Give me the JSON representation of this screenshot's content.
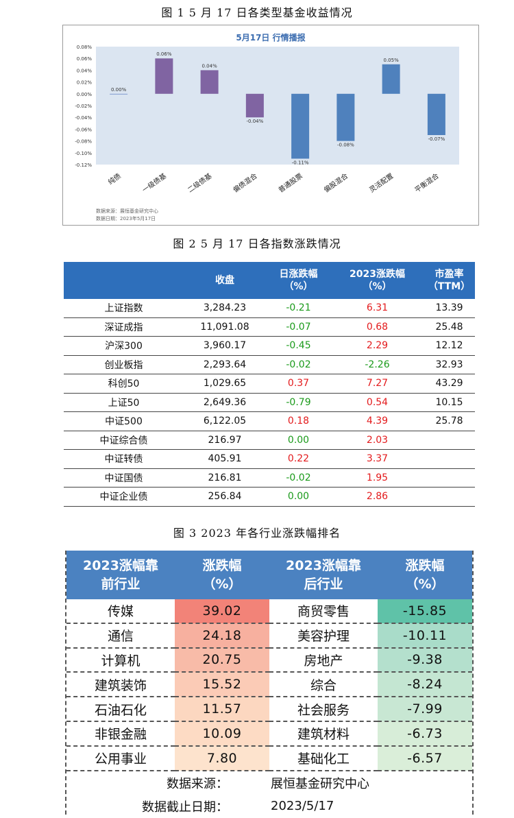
{
  "fig1": {
    "caption": "图 1   5 月 17 日各类型基金收益情况",
    "chart_title": "5月17日  行情播报",
    "source_line1": "数据来源：展恒基金研究中心",
    "source_line2": "数据日期：2023年5月17日",
    "chart_data": {
      "type": "bar",
      "categories": [
        "纯债",
        "一级债基",
        "二级债基",
        "偏债混合",
        "普通股票",
        "偏股混合",
        "灵活配置",
        "平衡混合"
      ],
      "values": [
        0.0,
        0.06,
        0.04,
        -0.04,
        -0.11,
        -0.08,
        0.05,
        -0.07
      ],
      "value_labels": [
        "0.00%",
        "0.06%",
        "0.04%",
        "-0.04%",
        "-0.11%",
        "-0.08%",
        "0.05%",
        "-0.07%"
      ],
      "colors": [
        "#7f9ad0",
        "#8064a2",
        "#8064a2",
        "#8064a2",
        "#4f81bd",
        "#4f81bd",
        "#4f81bd",
        "#4f81bd"
      ],
      "ylim": [
        -0.12,
        0.08
      ],
      "yticks": [
        0.08,
        0.06,
        0.04,
        0.02,
        0.0,
        -0.02,
        -0.04,
        -0.06,
        -0.08,
        -0.1,
        -0.12
      ],
      "ytick_labels": [
        "0.08%",
        "0.06%",
        "0.04%",
        "0.02%",
        "0.00%",
        "-0.02%",
        "-0.04%",
        "-0.06%",
        "-0.08%",
        "-0.10%",
        "-0.12%"
      ],
      "plot_bg": "#dbe5f1",
      "xlabel": "",
      "ylabel": ""
    }
  },
  "fig2": {
    "caption": "图 2   5 月 17 日各指数涨跌情况",
    "headers": [
      "",
      "收盘",
      "日涨跌幅\n（%）",
      "2023涨跌幅\n（%）",
      "市盈率\n（TTM）"
    ],
    "header_color": "#2e6fbb",
    "rows": [
      {
        "name": "上证指数",
        "close": "3,284.23",
        "day": "-0.21",
        "ytd": "6.31",
        "pe": "13.39"
      },
      {
        "name": "深证成指",
        "close": "11,091.08",
        "day": "-0.07",
        "ytd": "0.68",
        "pe": "25.48"
      },
      {
        "name": "沪深300",
        "close": "3,960.17",
        "day": "-0.45",
        "ytd": "2.29",
        "pe": "12.12"
      },
      {
        "name": "创业板指",
        "close": "2,293.64",
        "day": "-0.02",
        "ytd": "-2.26",
        "pe": "32.93"
      },
      {
        "name": "科创50",
        "close": "1,029.65",
        "day": "0.37",
        "ytd": "7.27",
        "pe": "43.29"
      },
      {
        "name": "上证50",
        "close": "2,649.36",
        "day": "-0.79",
        "ytd": "0.54",
        "pe": "10.15"
      },
      {
        "name": "中证500",
        "close": "6,122.05",
        "day": "0.18",
        "ytd": "4.39",
        "pe": "25.78"
      },
      {
        "name": "中证综合债",
        "close": "216.97",
        "day": "0.00",
        "ytd": "2.03",
        "pe": ""
      },
      {
        "name": "中证转债",
        "close": "405.91",
        "day": "0.22",
        "ytd": "3.37",
        "pe": ""
      },
      {
        "name": "中证国债",
        "close": "216.81",
        "day": "-0.02",
        "ytd": "1.95",
        "pe": ""
      },
      {
        "name": "中证企业债",
        "close": "256.84",
        "day": "0.00",
        "ytd": "2.86",
        "pe": ""
      }
    ]
  },
  "fig3": {
    "caption": "图 3   2023 年各行业涨跌幅排名",
    "headers": [
      "2023涨幅靠\n前行业",
      "涨跌幅\n（%）",
      "2023涨幅靠\n后行业",
      "涨跌幅\n（%）"
    ],
    "header_color": "#4b82c1",
    "rows": [
      {
        "top": "传媒",
        "top_val": "39.02",
        "top_color": "#f28378",
        "bottom": "商贸零售",
        "bottom_val": "-15.85",
        "bottom_color": "#5fc2a8"
      },
      {
        "top": "通信",
        "top_val": "24.18",
        "top_color": "#f7b09f",
        "bottom": "美容护理",
        "bottom_val": "-10.11",
        "bottom_color": "#a9dcc9"
      },
      {
        "top": "计算机",
        "top_val": "20.75",
        "top_color": "#f8bba8",
        "bottom": "房地产",
        "bottom_val": "-9.38",
        "bottom_color": "#b4e0cd"
      },
      {
        "top": "建筑装饰",
        "top_val": "15.52",
        "top_color": "#fbcbb6",
        "bottom": "综合",
        "bottom_val": "-8.24",
        "bottom_color": "#c4e6d2"
      },
      {
        "top": "石油石化",
        "top_val": "11.57",
        "top_color": "#fcd7c0",
        "bottom": "社会服务",
        "bottom_val": "-7.99",
        "bottom_color": "#c8e7d3"
      },
      {
        "top": "非银金融",
        "top_val": "10.09",
        "top_color": "#fddbc4",
        "bottom": "建筑材料",
        "bottom_val": "-6.73",
        "bottom_color": "#d7edd8"
      },
      {
        "top": "公用事业",
        "top_val": "7.80",
        "top_color": "#fde3cd",
        "bottom": "基础化工",
        "bottom_val": "-6.57",
        "bottom_color": "#daeed9"
      }
    ],
    "footer": [
      {
        "label": "数据来源：",
        "value": "展恒基金研究中心"
      },
      {
        "label": "数据截止日期：",
        "value": "2023/5/17"
      }
    ]
  }
}
